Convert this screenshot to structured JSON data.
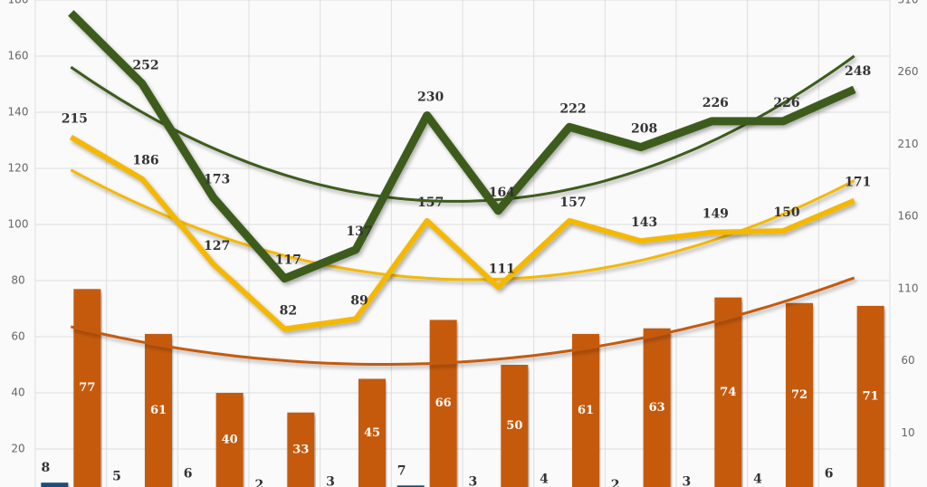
{
  "chart_data": {
    "type": "combo",
    "categories": [
      null,
      null,
      null,
      null,
      null,
      null,
      null,
      null,
      null,
      null,
      null,
      null
    ],
    "ylim": [
      0,
      180
    ],
    "yticks": [
      20,
      40,
      60,
      80,
      100,
      120,
      140,
      160,
      180
    ],
    "y2lim": [
      -40,
      310
    ],
    "y2ticks": [
      10,
      60,
      110,
      160,
      210,
      260,
      310
    ],
    "grid": true,
    "trendline": true,
    "series": [
      {
        "kind": "bar",
        "color": "#1f4e79",
        "values": [
          8,
          5,
          6,
          2,
          3,
          7,
          3,
          4,
          2,
          3,
          4,
          6
        ]
      },
      {
        "kind": "bar",
        "color": "#c55a11",
        "trendline": true,
        "values": [
          77,
          61,
          40,
          33,
          45,
          66,
          50,
          61,
          63,
          74,
          72,
          71
        ]
      },
      {
        "kind": "line",
        "axis": "y2",
        "color": "#f5b800",
        "trendline": true,
        "values": [
          215,
          186,
          127,
          82,
          89,
          157,
          111,
          157,
          143,
          149,
          150,
          171
        ]
      },
      {
        "kind": "line",
        "axis": "y2",
        "color": "#3d5c1f",
        "trendline": true,
        "values": [
          301,
          252,
          173,
          117,
          137,
          230,
          164,
          222,
          208,
          226,
          226,
          248
        ]
      }
    ]
  }
}
